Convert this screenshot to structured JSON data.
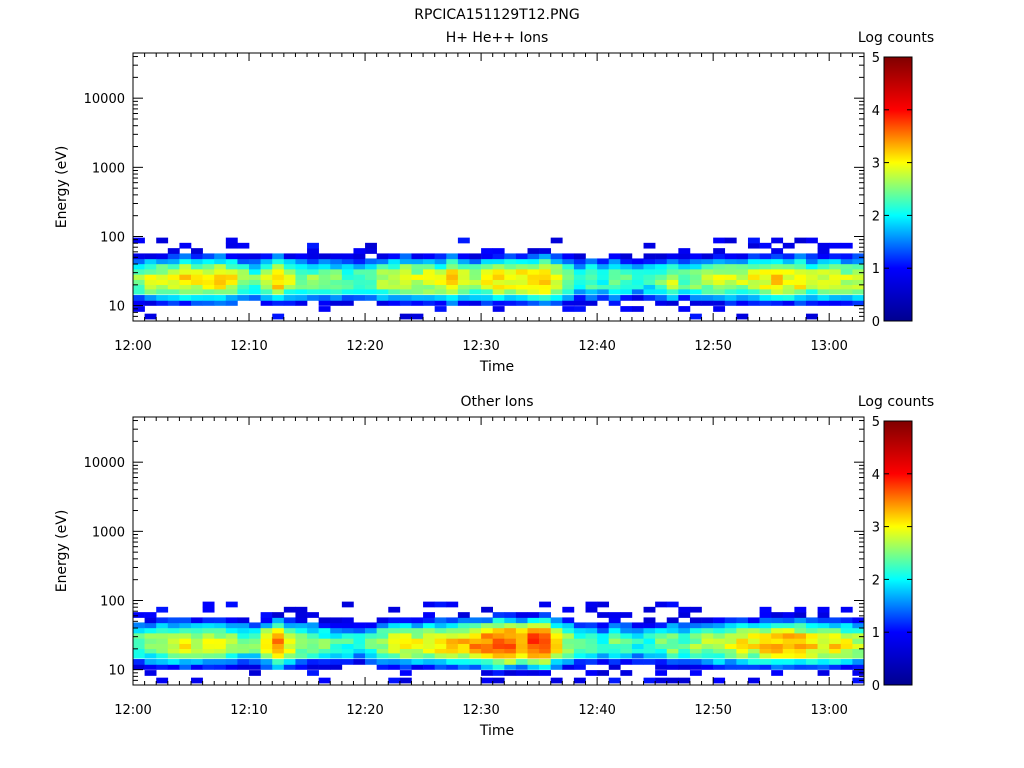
{
  "figure": {
    "title": "RPCICA151129T12.PNG"
  },
  "colorbar": {
    "label": "Log counts",
    "min": 0,
    "max": 5,
    "ticks": [
      "0",
      "1",
      "2",
      "3",
      "4",
      "5"
    ],
    "colormap": [
      "#00008f",
      "#0000ff",
      "#00ffff",
      "#ffff00",
      "#ff0000",
      "#800000"
    ]
  },
  "chart_data": [
    {
      "type": "heatmap",
      "title": "H+ He++ Ions",
      "xlabel": "Time",
      "ylabel": "Energy (eV)",
      "x_range": [
        "12:00",
        "13:03"
      ],
      "x_ticks": [
        "12:00",
        "12:10",
        "12:20",
        "12:30",
        "12:40",
        "12:50",
        "13:00"
      ],
      "y_scale": "log",
      "y_range": [
        6,
        45000
      ],
      "y_ticks": [
        "10",
        "100",
        "1000",
        "10000"
      ],
      "value_range": [
        0,
        5
      ],
      "energy_bins": [
        7,
        9,
        11,
        13,
        16,
        19,
        22,
        26,
        31,
        37,
        44,
        52,
        62,
        74,
        88
      ],
      "peak_log_counts_by_minute": [
        2.6,
        2.8,
        2.9,
        3.0,
        3.1,
        3.0,
        3.1,
        3.2,
        3.0,
        2.6,
        2.4,
        2.8,
        3.2,
        2.8,
        2.6,
        2.5,
        2.6,
        2.5,
        2.4,
        2.3,
        2.5,
        2.7,
        2.8,
        3.0,
        2.8,
        2.9,
        2.8,
        3.2,
        2.9,
        2.7,
        2.9,
        3.1,
        3.0,
        3.1,
        3.2,
        3.3,
        3.0,
        2.6,
        2.3,
        2.4,
        2.2,
        2.6,
        2.3,
        2.1,
        2.2,
        2.5,
        2.7,
        2.4,
        2.6,
        2.6,
        2.8,
        2.9,
        2.8,
        2.9,
        3.0,
        3.1,
        3.0,
        3.1,
        2.8,
        2.9,
        3.0,
        2.8,
        2.9
      ],
      "colorbar_label": "Log counts"
    },
    {
      "type": "heatmap",
      "title": "Other Ions",
      "xlabel": "Time",
      "ylabel": "Energy (eV)",
      "x_range": [
        "12:00",
        "13:03"
      ],
      "x_ticks": [
        "12:00",
        "12:10",
        "12:20",
        "12:30",
        "12:40",
        "12:50",
        "13:00"
      ],
      "y_scale": "log",
      "y_range": [
        6,
        45000
      ],
      "y_ticks": [
        "10",
        "100",
        "1000",
        "10000"
      ],
      "value_range": [
        0,
        5
      ],
      "energy_bins": [
        7,
        9,
        11,
        13,
        16,
        19,
        22,
        26,
        31,
        37,
        44,
        52,
        62,
        74,
        88
      ],
      "peak_log_counts_by_minute": [
        2.4,
        2.6,
        2.8,
        2.9,
        3.0,
        2.9,
        2.8,
        2.9,
        2.7,
        2.5,
        2.4,
        3.0,
        3.4,
        3.0,
        2.7,
        2.5,
        2.4,
        2.3,
        2.2,
        2.1,
        2.3,
        2.7,
        2.9,
        3.0,
        2.9,
        3.1,
        3.1,
        3.2,
        3.3,
        3.4,
        3.5,
        3.8,
        3.7,
        3.5,
        3.8,
        3.9,
        3.2,
        2.7,
        2.3,
        2.4,
        2.1,
        2.4,
        2.3,
        2.1,
        2.2,
        2.4,
        2.6,
        2.4,
        2.6,
        2.7,
        2.8,
        2.9,
        3.0,
        3.0,
        3.2,
        3.3,
        3.4,
        3.3,
        3.1,
        3.0,
        3.1,
        2.9,
        2.8
      ],
      "colorbar_label": "Log counts"
    }
  ]
}
